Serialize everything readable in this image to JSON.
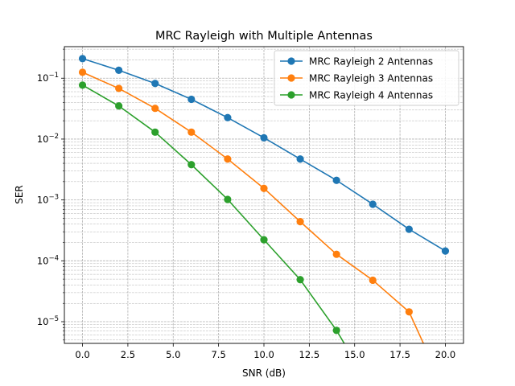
{
  "chart_data": {
    "type": "line",
    "title": "MRC Rayleigh with Multiple Antennas",
    "xlabel": "SNR (dB)",
    "ylabel": "SER",
    "xlim": [
      -1,
      21
    ],
    "ylim": [
      4.4e-06,
      0.33
    ],
    "yscale": "log",
    "grid": "both",
    "legend_position": "top-right",
    "x_ticks": [
      {
        "value": 0,
        "label": "0.0"
      },
      {
        "value": 2.5,
        "label": "2.5"
      },
      {
        "value": 5,
        "label": "5.0"
      },
      {
        "value": 7.5,
        "label": "7.5"
      },
      {
        "value": 10,
        "label": "10.0"
      },
      {
        "value": 12.5,
        "label": "12.5"
      },
      {
        "value": 15,
        "label": "15.0"
      },
      {
        "value": 17.5,
        "label": "17.5"
      },
      {
        "value": 20,
        "label": "20.0"
      }
    ],
    "y_ticks": [
      {
        "value": 1e-05,
        "base": "10",
        "exp": "−5"
      },
      {
        "value": 0.0001,
        "base": "10",
        "exp": "−4"
      },
      {
        "value": 0.001,
        "base": "10",
        "exp": "−3"
      },
      {
        "value": 0.01,
        "base": "10",
        "exp": "−2"
      },
      {
        "value": 0.1,
        "base": "10",
        "exp": "−1"
      }
    ],
    "x": [
      0,
      2,
      4,
      6,
      8,
      10,
      12,
      14,
      16,
      18,
      20
    ],
    "series": [
      {
        "name": "MRC Rayleigh 2 Antennas",
        "color": "#1f77b4",
        "values": [
          0.21,
          0.135,
          0.082,
          0.045,
          0.0225,
          0.0105,
          0.0047,
          0.0021,
          0.00085,
          0.00033,
          0.000145
        ]
      },
      {
        "name": "MRC Rayleigh 3 Antennas",
        "color": "#ff7f0e",
        "values": [
          0.125,
          0.068,
          0.032,
          0.013,
          0.0047,
          0.00155,
          0.00044,
          0.000128,
          4.8e-05,
          1.45e-05,
          0
        ]
      },
      {
        "name": "MRC Rayleigh 4 Antennas",
        "color": "#2ca02c",
        "values": [
          0.077,
          0.035,
          0.013,
          0.0038,
          0.00102,
          0.000222,
          4.9e-05,
          7.2e-06,
          0,
          0,
          0
        ]
      }
    ]
  }
}
